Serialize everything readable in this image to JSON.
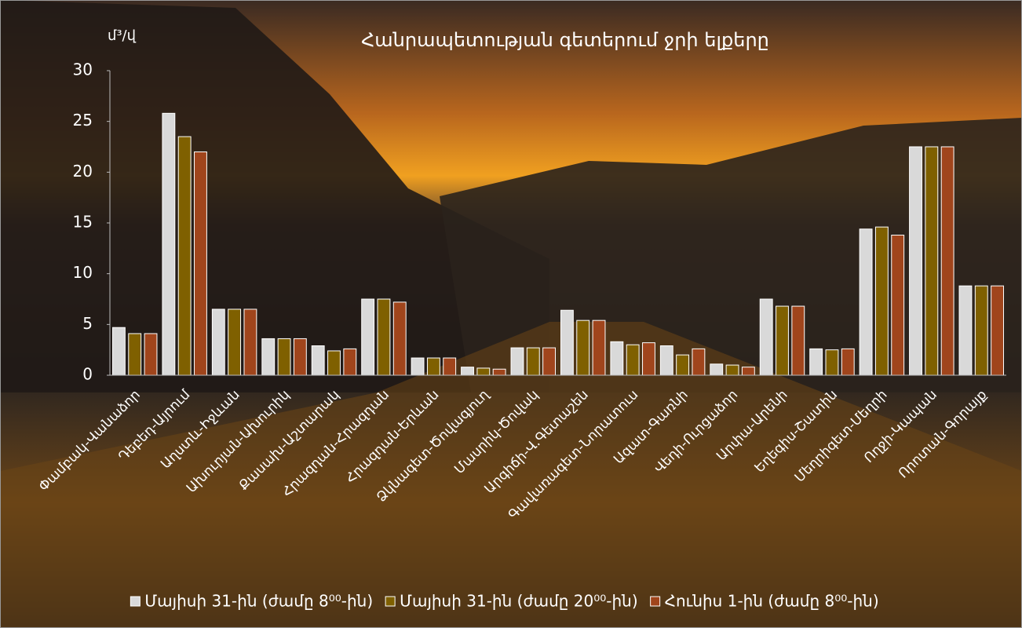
{
  "chart_data": {
    "type": "bar",
    "title": "Հանրապետության գետերում ջրի ելքերը",
    "y_label": "մ³/վ",
    "categories": [
      "Փամբակ-Վանաձոր",
      "Դեբեդ-Այրում",
      "Աղստև-Իջևան",
      "Ախուրյան-Ախուրիկ",
      "Քասախ-Աշտարակ",
      "Հրազդան-Հրազդան",
      "Հրազդան-Երևան",
      "Ձկնագետ-Ծովագյուղ",
      "Մասրիկ-Ծովակ",
      "Արգիճի-Վ.Գետաշեն",
      "Գավառագետ-Նորատուս",
      "Ազատ-Գառնի",
      "Վեդի-Ուրցաձոր",
      "Արփա-Արենի",
      "Եղեգիս-Շատին",
      "Մեղրիգետ-Մեղրի",
      "Ողջի-Կապան",
      "Որոտան-Գորայք"
    ],
    "series": [
      {
        "name": "Մայիսի 31-ին (ժամը 8⁰⁰-ին)",
        "color": "#d9d9d9",
        "values": [
          4.7,
          25.8,
          6.5,
          3.6,
          2.9,
          7.5,
          1.7,
          0.8,
          2.7,
          6.4,
          3.3,
          2.9,
          1.1,
          7.5,
          2.6,
          14.4,
          22.5,
          8.8
        ]
      },
      {
        "name": "Մայիսի 31-ին (ժամը 20⁰⁰-ին)",
        "color": "#7f6000",
        "values": [
          4.1,
          23.5,
          6.5,
          3.6,
          2.4,
          7.5,
          1.7,
          0.7,
          2.7,
          5.4,
          3.0,
          2.0,
          1.0,
          6.8,
          2.5,
          14.6,
          22.5,
          8.8
        ]
      },
      {
        "name": "Հունիս 1-ին (ժամը 8⁰⁰-ին)",
        "color": "#a0451c",
        "values": [
          4.1,
          22.0,
          6.5,
          3.6,
          2.6,
          7.2,
          1.7,
          0.6,
          2.7,
          5.4,
          3.2,
          2.6,
          0.8,
          6.8,
          2.6,
          13.8,
          22.5,
          8.8
        ]
      }
    ],
    "ylim": [
      0,
      30
    ],
    "yticks": [
      0,
      5,
      10,
      15,
      20,
      25,
      30
    ],
    "grid": false,
    "legend": "bottom"
  }
}
